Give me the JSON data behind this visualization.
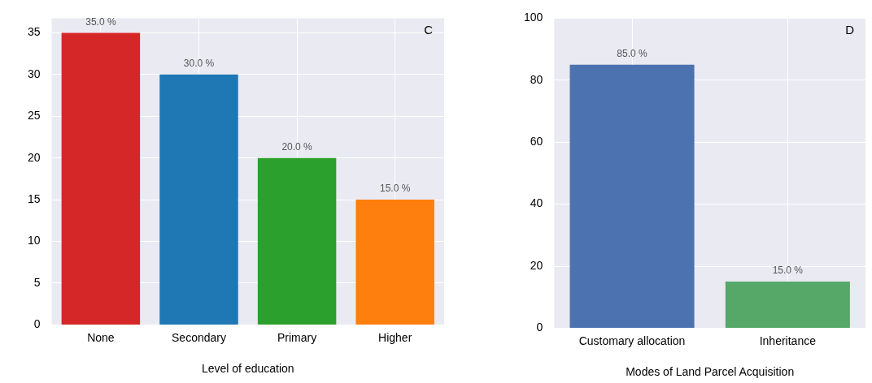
{
  "chart_data": [
    {
      "type": "bar",
      "xlabel": "Level of education",
      "categories": [
        "None",
        "Secondary",
        "Primary",
        "Higher"
      ],
      "values": [
        35,
        30,
        20,
        15
      ],
      "colors": [
        "#d62728",
        "#1f77b4",
        "#2ca02c",
        "#ff7f0e"
      ],
      "value_labels": [
        "35.0 %",
        "30.0 %",
        "20.0 %",
        "15.0 %"
      ],
      "ylim": [
        0,
        36.75
      ],
      "yticks": [
        0,
        5,
        10,
        15,
        20,
        25,
        30,
        35
      ],
      "grid": true,
      "annotations": [
        "C"
      ]
    },
    {
      "type": "bar",
      "xlabel": "Modes of Land Parcel Acquisition",
      "categories": [
        "Customary allocation",
        "Inheritance"
      ],
      "values": [
        85,
        15
      ],
      "colors": [
        "#4c72b0",
        "#55a868"
      ],
      "value_labels": [
        "85.0 %",
        "15.0 %"
      ],
      "ylim": [
        0,
        100
      ],
      "yticks": [
        0,
        20,
        40,
        60,
        80,
        100
      ],
      "grid": true,
      "annotations": [
        "D"
      ]
    }
  ]
}
